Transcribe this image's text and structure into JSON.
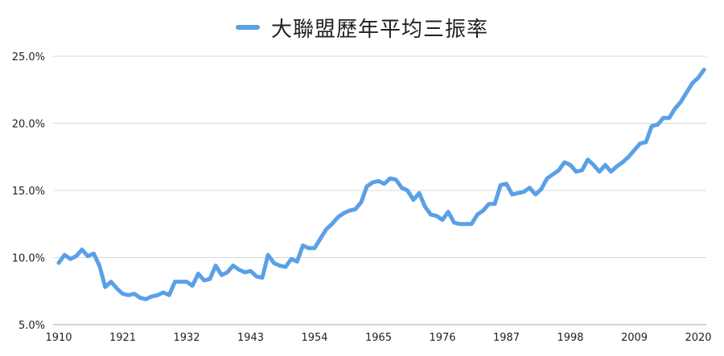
{
  "colors": {
    "series": "#5aa0e6",
    "grid": "#d9d9d9",
    "axis": "#aaaaaa",
    "text": "#222222"
  },
  "chart_data": {
    "type": "line",
    "title": "",
    "xlabel": "",
    "ylabel": "",
    "legend_position": "top-center",
    "grid": true,
    "xlim": [
      1910,
      2021
    ],
    "ylim": [
      5.0,
      25.0
    ],
    "x_ticks": [
      1910,
      1921,
      1932,
      1943,
      1954,
      1965,
      1976,
      1987,
      1998,
      2009,
      2020
    ],
    "x_tick_labels": [
      "1910",
      "1921",
      "1932",
      "1943",
      "1954",
      "1965",
      "1976",
      "1987",
      "1998",
      "2009",
      "2020"
    ],
    "y_ticks": [
      5.0,
      10.0,
      15.0,
      20.0,
      25.0
    ],
    "y_tick_labels": [
      "5.0%",
      "10.0%",
      "15.0%",
      "20.0%",
      "25.0%"
    ],
    "series": [
      {
        "name": "大聯盟歷年平均三振率",
        "color": "#5aa0e6",
        "x": [
          1910,
          1911,
          1912,
          1913,
          1914,
          1915,
          1916,
          1917,
          1918,
          1919,
          1920,
          1921,
          1922,
          1923,
          1924,
          1925,
          1926,
          1927,
          1928,
          1929,
          1930,
          1931,
          1932,
          1933,
          1934,
          1935,
          1936,
          1937,
          1938,
          1939,
          1940,
          1941,
          1942,
          1943,
          1944,
          1945,
          1946,
          1947,
          1948,
          1949,
          1950,
          1951,
          1952,
          1953,
          1954,
          1955,
          1956,
          1957,
          1958,
          1959,
          1960,
          1961,
          1962,
          1963,
          1964,
          1965,
          1966,
          1967,
          1968,
          1969,
          1970,
          1971,
          1972,
          1973,
          1974,
          1975,
          1976,
          1977,
          1978,
          1979,
          1980,
          1981,
          1982,
          1983,
          1984,
          1985,
          1986,
          1987,
          1988,
          1989,
          1990,
          1991,
          1992,
          1993,
          1994,
          1995,
          1996,
          1997,
          1998,
          1999,
          2000,
          2001,
          2002,
          2003,
          2004,
          2005,
          2006,
          2007,
          2008,
          2009,
          2010,
          2011,
          2012,
          2013,
          2014,
          2015,
          2016,
          2017,
          2018,
          2019,
          2020,
          2021
        ],
        "values": [
          9.6,
          10.2,
          9.9,
          10.1,
          10.6,
          10.1,
          10.3,
          9.4,
          7.8,
          8.2,
          7.7,
          7.3,
          7.2,
          7.3,
          7.0,
          6.9,
          7.1,
          7.2,
          7.4,
          7.2,
          8.2,
          8.2,
          8.2,
          7.9,
          8.8,
          8.3,
          8.4,
          9.4,
          8.7,
          8.9,
          9.4,
          9.1,
          8.9,
          9.0,
          8.6,
          8.5,
          10.2,
          9.6,
          9.4,
          9.3,
          9.9,
          9.7,
          10.9,
          10.7,
          10.7,
          11.4,
          12.1,
          12.5,
          13.0,
          13.3,
          13.5,
          13.6,
          14.1,
          15.3,
          15.6,
          15.7,
          15.5,
          15.9,
          15.8,
          15.2,
          15.0,
          14.3,
          14.8,
          13.8,
          13.2,
          13.1,
          12.8,
          13.4,
          12.6,
          12.5,
          12.5,
          12.5,
          13.2,
          13.5,
          14.0,
          14.0,
          15.4,
          15.5,
          14.7,
          14.8,
          14.9,
          15.2,
          14.7,
          15.1,
          15.9,
          16.2,
          16.5,
          17.1,
          16.9,
          16.4,
          16.5,
          17.3,
          16.9,
          16.4,
          16.9,
          16.4,
          16.8,
          17.1,
          17.5,
          18.0,
          18.5,
          18.6,
          19.8,
          19.9,
          20.4,
          20.4,
          21.1,
          21.6,
          22.3,
          23.0,
          23.4,
          24.0
        ]
      }
    ]
  }
}
